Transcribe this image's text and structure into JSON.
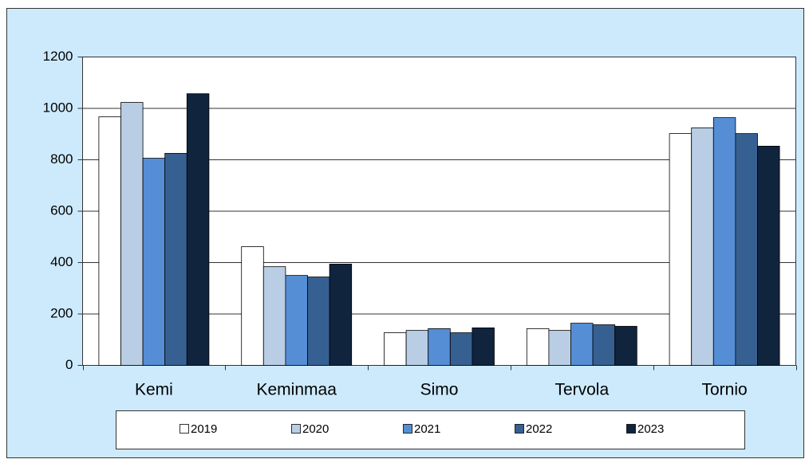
{
  "chart_data": {
    "type": "bar",
    "categories": [
      "Kemi",
      "Keminmaa",
      "Simo",
      "Tervola",
      "Tornio"
    ],
    "series": [
      {
        "name": "2019",
        "color": "#ffffff",
        "values": [
          967,
          462,
          127,
          143,
          902
        ]
      },
      {
        "name": "2020",
        "color": "#b9cde5",
        "values": [
          1023,
          384,
          136,
          136,
          924
        ]
      },
      {
        "name": "2021",
        "color": "#558ed5",
        "values": [
          806,
          350,
          143,
          164,
          964
        ]
      },
      {
        "name": "2022",
        "color": "#376092",
        "values": [
          825,
          344,
          127,
          158,
          902
        ]
      },
      {
        "name": "2023",
        "color": "#10243e",
        "values": [
          1057,
          394,
          146,
          152,
          853
        ]
      }
    ],
    "ylim": [
      0,
      1200
    ],
    "yticks": [
      0,
      200,
      400,
      600,
      800,
      1000,
      1200
    ],
    "grid": true,
    "legend": "bottom"
  }
}
